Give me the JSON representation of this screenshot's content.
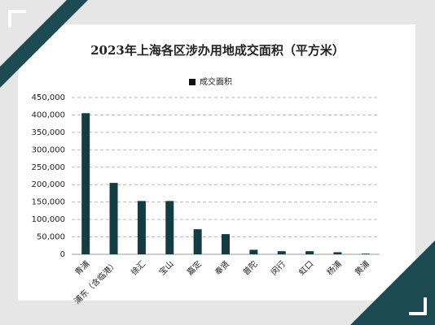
{
  "chart_data": {
    "type": "bar",
    "title": "2023年上海各区涉办用地成交面积（平方米）",
    "legend": "成交面积",
    "categories": [
      "青浦",
      "浦东（含临港）",
      "徐汇",
      "宝山",
      "嘉定",
      "奉贤",
      "普陀",
      "闵行",
      "虹口",
      "杨浦",
      "黄浦"
    ],
    "values": [
      405000,
      205000,
      153000,
      153000,
      72000,
      58000,
      13000,
      9000,
      9000,
      6000,
      2000
    ],
    "color": "#133d42",
    "ylim": [
      0,
      450000
    ],
    "yticks": [
      0,
      {
        "value": 50000,
        "label": "50,000"
      },
      {
        "value": 100000,
        "label": "100,000"
      },
      {
        "value": 150000,
        "label": "150,000"
      },
      {
        "value": 200000,
        "label": "200,000"
      },
      {
        "value": 250000,
        "label": "250,000"
      },
      {
        "value": 300000,
        "label": "300,000"
      },
      {
        "value": 350000,
        "label": "350,000"
      },
      {
        "value": 400000,
        "label": "400,000"
      },
      {
        "value": 450000,
        "label": "450,000"
      }
    ],
    "grid": true
  }
}
